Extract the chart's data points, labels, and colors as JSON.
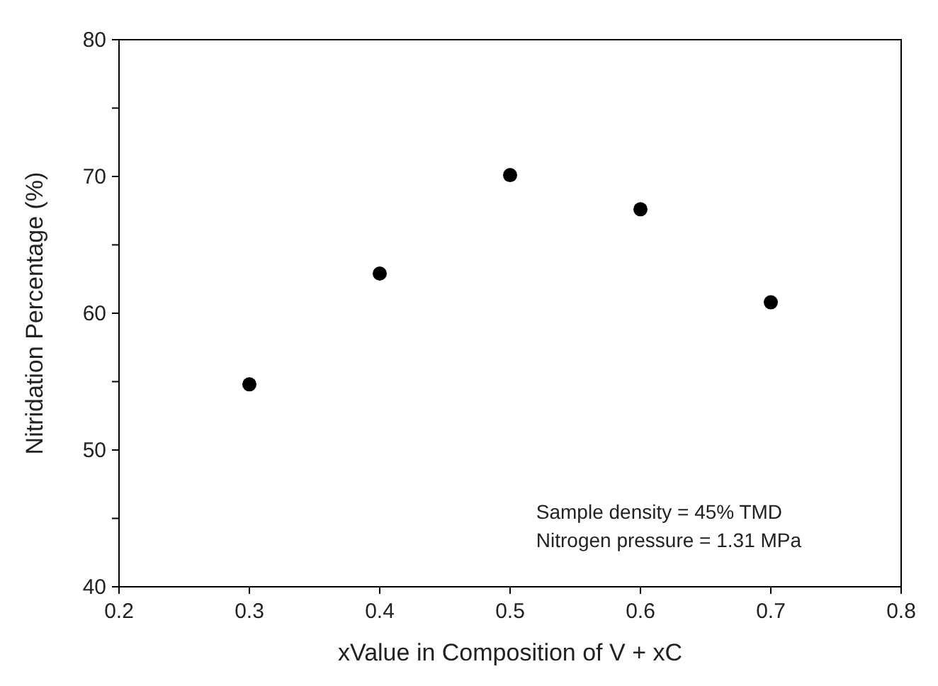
{
  "chart_data": {
    "type": "scatter",
    "xlabel": "xValue in Composition of V + xC",
    "ylabel": "Nitridation Percentage (%)",
    "x": [
      0.3,
      0.4,
      0.5,
      0.6,
      0.7
    ],
    "values": [
      54.8,
      62.9,
      70.1,
      67.6,
      60.8
    ],
    "color": "#000000",
    "marker": "circle",
    "xlim": [
      0.2,
      0.8
    ],
    "xticks": [
      0.2,
      0.3,
      0.4,
      0.5,
      0.6,
      0.7,
      0.8
    ],
    "ylim": [
      40,
      80
    ],
    "yticks": [
      40,
      {
        "value": 45,
        "label": null
      },
      50,
      {
        "value": 55,
        "label": null
      },
      60,
      {
        "value": 65,
        "label": null
      },
      70,
      {
        "value": 75,
        "label": null
      },
      80
    ],
    "annotations": [
      "Sample density = 45% TMD",
      "Nitrogen pressure = 1.31 MPa"
    ],
    "grid": false
  }
}
